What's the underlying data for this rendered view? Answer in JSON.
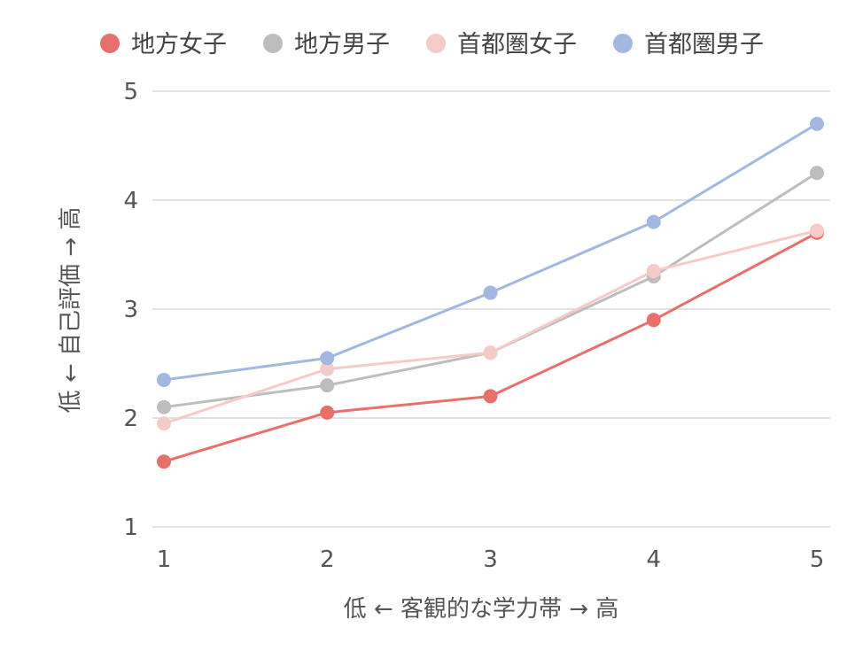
{
  "chart_data": {
    "type": "line",
    "title": "",
    "xlabel": "低 ← 客観的な学力帯 → 高",
    "ylabel": "低 ← 自己評価 → 高",
    "x": [
      1,
      2,
      3,
      4,
      5
    ],
    "xlim": [
      1,
      5
    ],
    "ylim": [
      1,
      5
    ],
    "y_ticks": [
      1,
      2,
      3,
      4,
      5
    ],
    "grid": "horizontal",
    "legend_position": "top",
    "series": [
      {
        "name": "地方女子",
        "color": "#e8706b",
        "values": [
          1.6,
          2.05,
          2.2,
          2.9,
          3.7
        ]
      },
      {
        "name": "地方男子",
        "color": "#bdbdbd",
        "values": [
          2.1,
          2.3,
          2.6,
          3.3,
          4.25
        ]
      },
      {
        "name": "首都圏女子",
        "color": "#f6cbc7",
        "values": [
          1.95,
          2.45,
          2.6,
          3.35,
          3.72
        ]
      },
      {
        "name": "首都圏男子",
        "color": "#a3b8e0",
        "values": [
          2.35,
          2.55,
          3.15,
          3.8,
          4.7
        ]
      }
    ]
  }
}
